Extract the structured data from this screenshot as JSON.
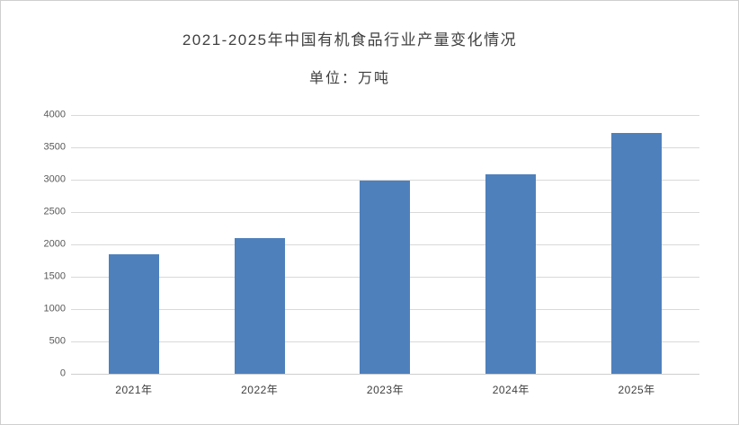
{
  "page": {
    "title": "2021-2025年中国有机食品行业产量变化情况",
    "subtitle": "单位：万吨"
  },
  "colors": {
    "bar": "#4e80bc",
    "gridline": "#d9d9d9",
    "axis_line": "#cfcfcf",
    "title_text": "#404040",
    "tick_text": "#595959",
    "xlabel_text": "#3f3f3f",
    "panel_border": "#cfcfcf",
    "background": "#ffffff"
  },
  "chart_data": {
    "type": "bar",
    "title": "2021-2025年中国有机食品行业产量变化情况",
    "subtitle": "单位：万吨",
    "unit": "万吨",
    "categories": [
      "2021年",
      "2022年",
      "2023年",
      "2024年",
      "2025年"
    ],
    "values": [
      1850,
      2100,
      2980,
      3090,
      3720
    ],
    "ylim": [
      0,
      4000
    ],
    "y_ticks": [
      0,
      500,
      1000,
      1500,
      2000,
      2500,
      3000,
      3500,
      4000
    ],
    "grid": true,
    "legend": "none",
    "bar_color": "#4e80bc",
    "xlabel": "",
    "ylabel": ""
  }
}
